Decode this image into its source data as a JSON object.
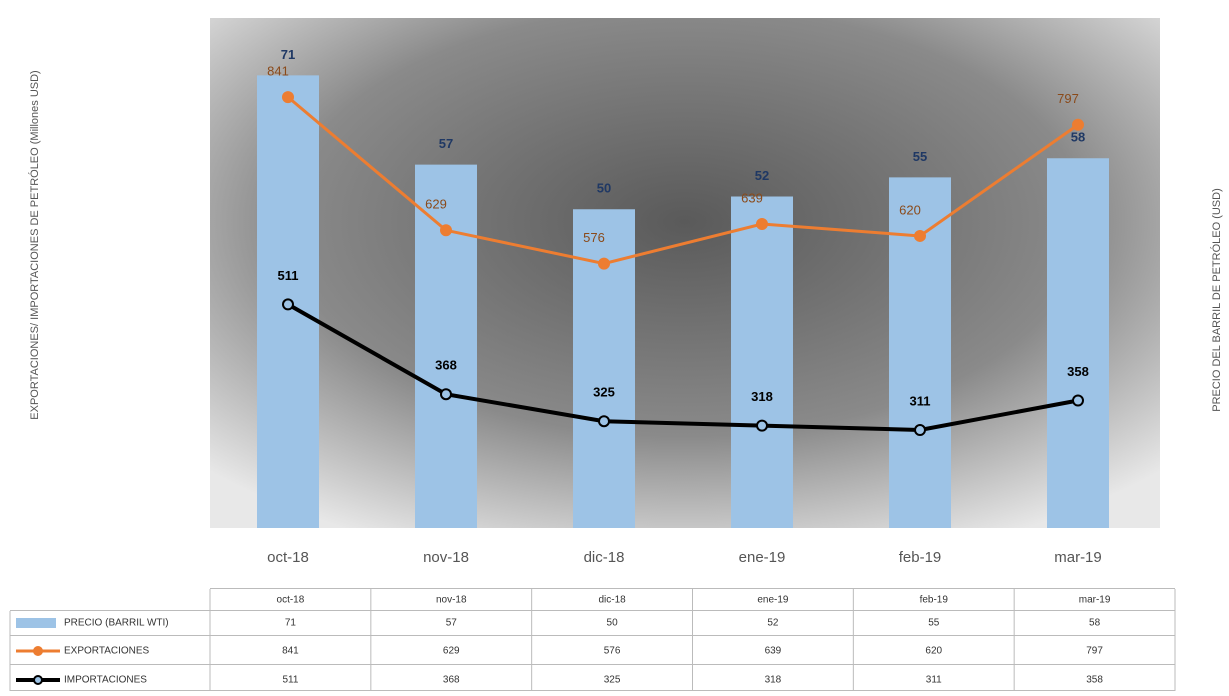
{
  "chart_data": {
    "type": "combo",
    "ylabel": "EXPORTACIONES/ IMPORTACIONES DE PETRÓLEO (Millones USD)",
    "y2label": "PRECIO DEL BARRIL DE PETRÓLEO (USD)",
    "categories": [
      "oct-18",
      "nov-18",
      "dic-18",
      "ene-19",
      "feb-19",
      "mar-19"
    ],
    "ylim": [
      155,
      967
    ],
    "y2lim": [
      0,
      80
    ],
    "series": [
      {
        "name": "PRECIO (BARRIL WTI)",
        "type": "bar",
        "axis": "y2",
        "color": "#9dc3e6",
        "values": [
          71,
          57,
          50,
          52,
          55,
          58
        ]
      },
      {
        "name": "EXPORTACIONES",
        "type": "line",
        "color": "#ed7d31",
        "values": [
          841,
          629,
          576,
          639,
          620,
          797
        ]
      },
      {
        "name": "IMPORTACIONES",
        "type": "line",
        "color": "#000000",
        "values": [
          511,
          368,
          325,
          318,
          311,
          358
        ]
      }
    ]
  }
}
